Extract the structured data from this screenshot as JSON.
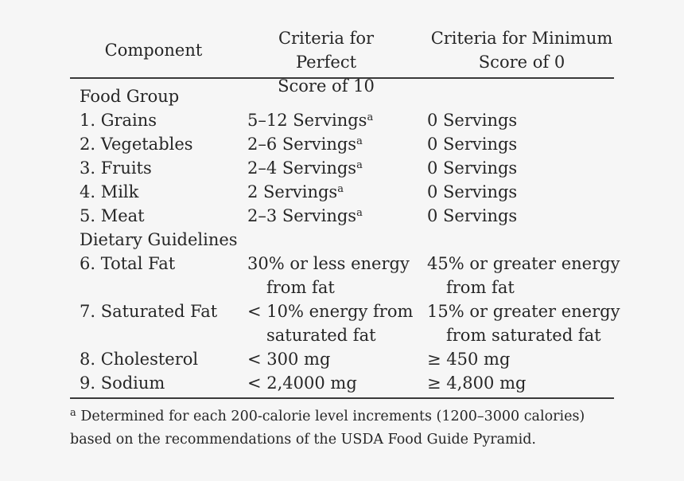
{
  "header": {
    "component": "Component",
    "perfect_line1": "Criteria for Perfect",
    "perfect_line2": "Score of 10",
    "minimum_line1": "Criteria for Minimum",
    "minimum_line2": "Score of 0"
  },
  "rows": [
    {
      "component": "Food Group",
      "perfect": "",
      "perfect_sup": "",
      "perfect_line2": "",
      "minimum": "",
      "minimum_line2": ""
    },
    {
      "component": "1. Grains",
      "perfect": "5–12 Servings",
      "perfect_sup": "a",
      "perfect_line2": "",
      "minimum": "0 Servings",
      "minimum_line2": ""
    },
    {
      "component": "2. Vegetables",
      "perfect": "2–6 Servings",
      "perfect_sup": "a",
      "perfect_line2": "",
      "minimum": "0 Servings",
      "minimum_line2": ""
    },
    {
      "component": "3. Fruits",
      "perfect": "2–4 Servings",
      "perfect_sup": "a",
      "perfect_line2": "",
      "minimum": "0 Servings",
      "minimum_line2": ""
    },
    {
      "component": "4. Milk",
      "perfect": "2 Servings",
      "perfect_sup": "a",
      "perfect_line2": "",
      "minimum": "0 Servings",
      "minimum_line2": ""
    },
    {
      "component": "5. Meat",
      "perfect": "2–3 Servings",
      "perfect_sup": "a",
      "perfect_line2": "",
      "minimum": "0 Servings",
      "minimum_line2": ""
    },
    {
      "component": "Dietary Guidelines",
      "perfect": "",
      "perfect_sup": "",
      "perfect_line2": "",
      "minimum": "",
      "minimum_line2": ""
    },
    {
      "component": "6. Total Fat",
      "perfect": "30% or less energy",
      "perfect_sup": "",
      "perfect_line2": "from fat",
      "minimum": "45% or greater energy",
      "minimum_line2": "from fat"
    },
    {
      "component": "7. Saturated Fat",
      "perfect": "< 10% energy from",
      "perfect_sup": "",
      "perfect_line2": "saturated fat",
      "minimum": "15% or greater energy",
      "minimum_line2": "from saturated fat"
    },
    {
      "component": "8. Cholesterol",
      "perfect": "< 300 mg",
      "perfect_sup": "",
      "perfect_line2": "",
      "minimum": "≥ 450 mg",
      "minimum_line2": ""
    },
    {
      "component": "9. Sodium",
      "perfect": "< 2,4000 mg",
      "perfect_sup": "",
      "perfect_line2": "",
      "minimum": "≥ 4,800 mg",
      "minimum_line2": ""
    }
  ],
  "footnote": {
    "marker": "a",
    "text": "Determined for each 200-calorie level increments (1200–3000 calories) based on the recommendations of the USDA Food Guide Pyramid."
  }
}
